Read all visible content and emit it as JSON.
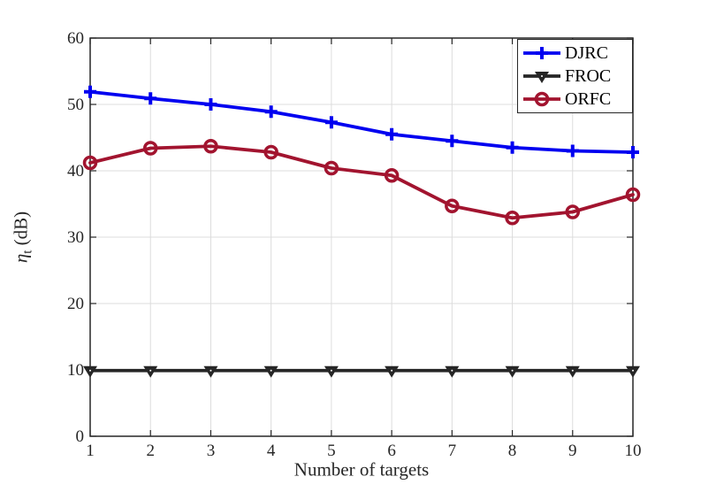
{
  "figure": {
    "background": "#ffffff",
    "axis_color": "#262626",
    "grid_color": "#dcdcdc",
    "tick_length": 7
  },
  "chart_data": {
    "type": "line",
    "title": "",
    "xlabel": "Number of targets",
    "ylabel": {
      "symbol": "η",
      "subscript": "t",
      "unit": " (dB)"
    },
    "x": [
      1,
      2,
      3,
      4,
      5,
      6,
      7,
      8,
      9,
      10
    ],
    "xlim": [
      1,
      10
    ],
    "ylim": [
      0,
      60
    ],
    "xticks": [
      "1",
      "2",
      "3",
      "4",
      "5",
      "6",
      "7",
      "8",
      "9",
      "10"
    ],
    "ytick_values": [
      0,
      10,
      20,
      30,
      40,
      50,
      60
    ],
    "yticks": [
      "0",
      "10",
      "20",
      "30",
      "40",
      "50",
      "60"
    ],
    "grid": true,
    "legend_position": "top-right",
    "series": [
      {
        "name": "DJRC",
        "color": "#0000F0",
        "marker": "plus",
        "values": [
          51.9,
          50.9,
          50.0,
          48.9,
          47.3,
          45.5,
          44.5,
          43.5,
          43.0,
          42.8
        ]
      },
      {
        "name": "FROC",
        "color": "#262626",
        "marker": "triangle-down",
        "values": [
          9.9,
          9.9,
          9.9,
          9.9,
          9.9,
          9.9,
          9.9,
          9.9,
          9.9,
          9.9
        ]
      },
      {
        "name": "ORFC",
        "color": "#A2142F",
        "marker": "circle",
        "values": [
          41.2,
          43.4,
          43.7,
          42.8,
          40.4,
          39.3,
          34.7,
          32.9,
          33.8,
          36.4
        ]
      }
    ]
  }
}
